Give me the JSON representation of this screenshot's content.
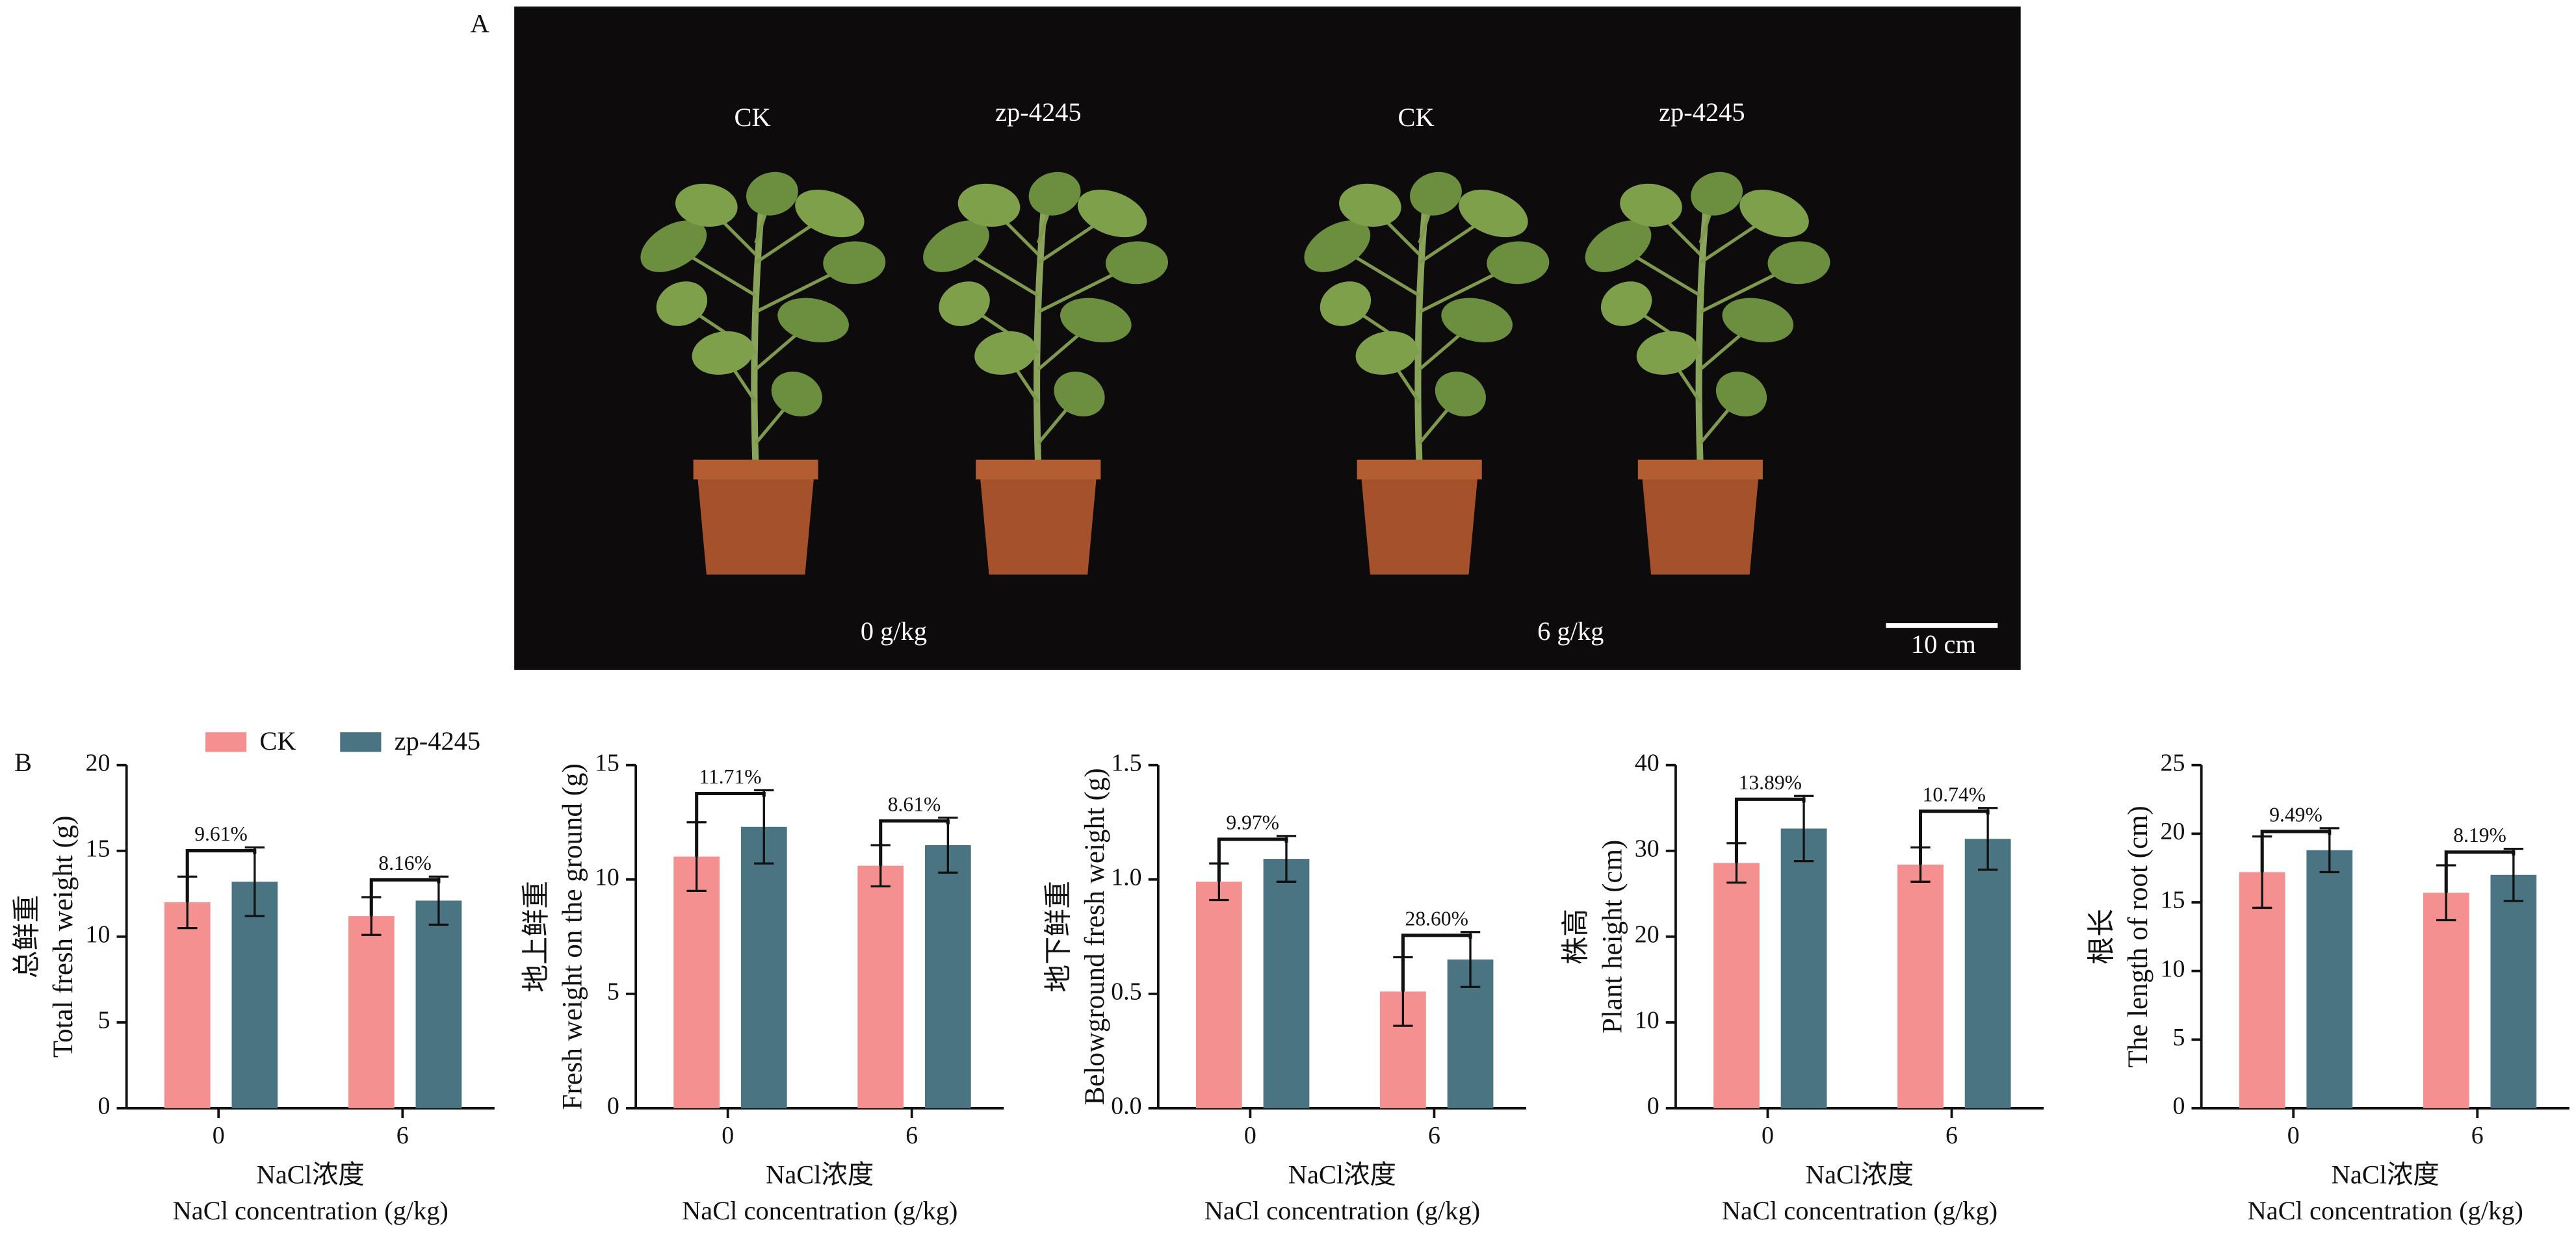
{
  "panel_a": {
    "label": "A",
    "plant_labels": [
      "CK",
      "zp-4245",
      "CK",
      "zp-4245"
    ],
    "treatments": [
      "0 g/kg",
      "6 g/kg"
    ],
    "scale_bar": "10 cm"
  },
  "panel_b_label": "B",
  "chart_data": [
    {
      "type": "bar",
      "ylabel": [
        "总鲜重",
        "Total fresh weight (g)"
      ],
      "xlabel": [
        "NaCl浓度",
        "NaCl concentration (g/kg)"
      ],
      "categories": [
        "0",
        "6"
      ],
      "legend": true,
      "series": [
        {
          "name": "CK",
          "color": "#f4908f",
          "values": [
            12.0,
            11.2
          ],
          "errors": [
            1.5,
            1.1
          ]
        },
        {
          "name": "zp-4245",
          "color": "#4a7482",
          "values": [
            13.2,
            12.1
          ],
          "errors": [
            2.0,
            1.4
          ]
        }
      ],
      "annotations": [
        "9.61%",
        "8.16%"
      ],
      "ylim": [
        0,
        20
      ],
      "yticks": [
        0,
        5,
        10,
        15,
        20
      ]
    },
    {
      "type": "bar",
      "ylabel": [
        "地上鲜重",
        "Fresh weight on the ground (g)"
      ],
      "xlabel": [
        "NaCl浓度",
        "NaCl concentration (g/kg)"
      ],
      "categories": [
        "0",
        "6"
      ],
      "series": [
        {
          "color": "#f4908f",
          "values": [
            11.0,
            10.6
          ],
          "errors": [
            1.5,
            0.9
          ]
        },
        {
          "color": "#4a7482",
          "values": [
            12.3,
            11.5
          ],
          "errors": [
            1.6,
            1.2
          ]
        }
      ],
      "annotations": [
        "11.71%",
        "8.61%"
      ],
      "ylim": [
        0,
        15
      ],
      "yticks": [
        0,
        5,
        10,
        15
      ]
    },
    {
      "type": "bar",
      "ylabel": [
        "地下鲜重",
        "Belowground fresh weight (g)"
      ],
      "xlabel": [
        "NaCl浓度",
        "NaCl concentration (g/kg)"
      ],
      "categories": [
        "0",
        "6"
      ],
      "series": [
        {
          "color": "#f4908f",
          "values": [
            0.99,
            0.51
          ],
          "errors": [
            0.08,
            0.15
          ]
        },
        {
          "color": "#4a7482",
          "values": [
            1.09,
            0.65
          ],
          "errors": [
            0.1,
            0.12
          ]
        }
      ],
      "annotations": [
        "9.97%",
        "28.60%"
      ],
      "ylim": [
        0,
        1.5
      ],
      "yticks": [
        {
          "value": 0,
          "label": "0.0"
        },
        0.5,
        {
          "value": 1,
          "label": "1.0"
        },
        1.5
      ]
    },
    {
      "type": "bar",
      "ylabel": [
        "株高",
        "Plant height (cm)"
      ],
      "xlabel": [
        "NaCl浓度",
        "NaCl concentration (g/kg)"
      ],
      "categories": [
        "0",
        "6"
      ],
      "series": [
        {
          "color": "#f4908f",
          "values": [
            28.6,
            28.4
          ],
          "errors": [
            2.3,
            2.0
          ]
        },
        {
          "color": "#4a7482",
          "values": [
            32.6,
            31.4
          ],
          "errors": [
            3.8,
            3.6
          ]
        }
      ],
      "annotations": [
        "13.89%",
        "10.74%"
      ],
      "ylim": [
        0,
        40
      ],
      "yticks": [
        0,
        10,
        20,
        30,
        40
      ]
    },
    {
      "type": "bar",
      "ylabel": [
        "根长",
        "The length of root (cm)"
      ],
      "xlabel": [
        "NaCl浓度",
        "NaCl concentration (g/kg)"
      ],
      "categories": [
        "0",
        "6"
      ],
      "series": [
        {
          "color": "#f4908f",
          "values": [
            17.2,
            15.7
          ],
          "errors": [
            2.6,
            2.0
          ]
        },
        {
          "color": "#4a7482",
          "values": [
            18.8,
            17.0
          ],
          "errors": [
            1.6,
            1.9
          ]
        }
      ],
      "annotations": [
        "9.49%",
        "8.19%"
      ],
      "ylim": [
        0,
        25
      ],
      "yticks": [
        0,
        5,
        10,
        15,
        20,
        25
      ]
    }
  ]
}
